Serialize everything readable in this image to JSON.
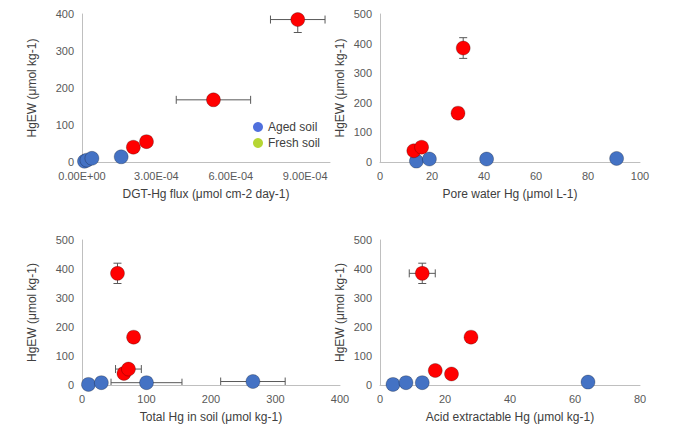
{
  "chart_data": [
    {
      "type": "scatter",
      "x_label": "DGT-Hg flux (μmol cm-2 day-1)",
      "y_label": "HgEW (μmol kg-1)",
      "xlim": [
        0,
        0.001
      ],
      "xticks": [
        {
          "value": 0,
          "label": "0.00E+00"
        },
        {
          "value": 0.0003,
          "label": "3.00E-04"
        },
        {
          "value": 0.0006,
          "label": "6.00E-04"
        },
        {
          "value": 0.0009,
          "label": "9.00E-04"
        }
      ],
      "ylim": [
        0,
        400
      ],
      "yticks": [
        0,
        100,
        200,
        300,
        400
      ],
      "grid": false,
      "legend": "right",
      "series": [
        {
          "name": "Aged soil",
          "color": "#4472c4",
          "marker": "circle",
          "x": [
            1e-05,
            2e-05,
            4e-05,
            0.000158
          ],
          "values": [
            2,
            5,
            10,
            14
          ],
          "xerr": [
            null,
            null,
            null,
            null
          ],
          "yerr": [
            null,
            null,
            null,
            null
          ]
        },
        {
          "name": "Fresh soil",
          "color": "#ff0000",
          "marker": "circle",
          "x": [
            0.000207,
            0.00026,
            0.00053,
            0.00087
          ],
          "values": [
            40,
            55,
            168,
            385
          ],
          "xerr": [
            null,
            2e-05,
            0.00015,
            0.00011
          ],
          "yerr": [
            null,
            null,
            null,
            35
          ]
        }
      ]
    },
    {
      "type": "scatter",
      "x_label": "Pore water Hg (μmol L-1)",
      "y_label": "HgEW (μmol kg-1)",
      "xlim": [
        0,
        100
      ],
      "xticks": [
        0,
        20,
        40,
        60,
        80,
        100
      ],
      "ylim": [
        0,
        500
      ],
      "yticks": [
        0,
        100,
        200,
        300,
        400,
        500
      ],
      "grid": false,
      "series": [
        {
          "name": "Aged soil",
          "color": "#4472c4",
          "marker": "circle",
          "x": [
            14,
            19,
            41,
            91
          ],
          "values": [
            3,
            10,
            10,
            12
          ],
          "xerr": [
            null,
            null,
            null,
            null
          ],
          "yerr": [
            null,
            null,
            null,
            null
          ]
        },
        {
          "name": "Fresh soil",
          "color": "#ff0000",
          "marker": "circle",
          "x": [
            13,
            16,
            30,
            32
          ],
          "values": [
            38,
            50,
            165,
            385
          ],
          "xerr": [
            null,
            null,
            null,
            null
          ],
          "yerr": [
            null,
            null,
            null,
            35
          ]
        }
      ]
    },
    {
      "type": "scatter",
      "x_label": "Total Hg in soil (μmol kg-1)",
      "y_label": "HgEW (μmol kg-1)",
      "xlim": [
        0,
        400
      ],
      "xticks": [
        0,
        100,
        200,
        300,
        400
      ],
      "ylim": [
        0,
        500
      ],
      "yticks": [
        0,
        100,
        200,
        300,
        400,
        500
      ],
      "grid": false,
      "series": [
        {
          "name": "Aged soil",
          "color": "#4472c4",
          "marker": "circle",
          "x": [
            10,
            30,
            100,
            265
          ],
          "values": [
            2,
            8,
            8,
            12
          ],
          "xerr": [
            null,
            null,
            55,
            50
          ],
          "yerr": [
            null,
            null,
            null,
            null
          ]
        },
        {
          "name": "Fresh soil",
          "color": "#ff0000",
          "marker": "circle",
          "x": [
            65,
            72,
            80,
            55
          ],
          "values": [
            40,
            55,
            165,
            385
          ],
          "xerr": [
            null,
            20,
            null,
            null
          ],
          "yerr": [
            null,
            null,
            null,
            35
          ]
        }
      ]
    },
    {
      "type": "scatter",
      "x_label": "Acid extractable Hg (μmol kg-1)",
      "y_label": "HgEW (μmol kg-1)",
      "xlim": [
        0,
        80
      ],
      "xticks": [
        0,
        20,
        40,
        60,
        80
      ],
      "ylim": [
        0,
        500
      ],
      "yticks": [
        0,
        100,
        200,
        300,
        400,
        500
      ],
      "grid": false,
      "series": [
        {
          "name": "Aged soil",
          "color": "#4472c4",
          "marker": "circle",
          "x": [
            4,
            8,
            13,
            64
          ],
          "values": [
            2,
            8,
            8,
            10
          ],
          "xerr": [
            null,
            null,
            null,
            null
          ],
          "yerr": [
            null,
            null,
            null,
            null
          ]
        },
        {
          "name": "Fresh soil",
          "color": "#ff0000",
          "marker": "circle",
          "x": [
            22,
            17,
            28,
            13
          ],
          "values": [
            38,
            50,
            165,
            385
          ],
          "xerr": [
            null,
            null,
            null,
            4
          ],
          "yerr": [
            null,
            null,
            null,
            35
          ]
        }
      ]
    }
  ]
}
